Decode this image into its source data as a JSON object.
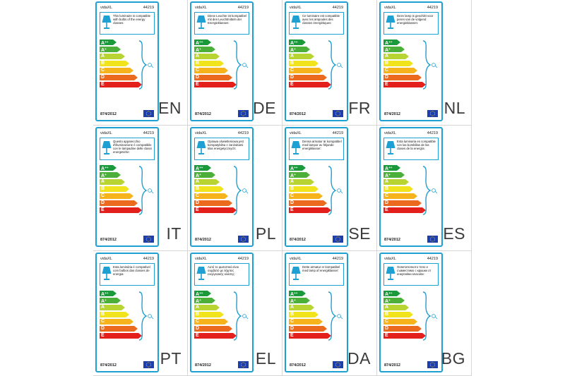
{
  "brand": "vidaXL",
  "model": "44219",
  "regulation": "874/2012",
  "energy_classes": [
    {
      "base": "A",
      "sup": "++",
      "color": "#1a9a3a",
      "width": 24
    },
    {
      "base": "A",
      "sup": "+",
      "color": "#4caf3a",
      "width": 30
    },
    {
      "base": "A",
      "sup": "",
      "color": "#b7d432",
      "width": 36
    },
    {
      "base": "B",
      "sup": "",
      "color": "#f1e41c",
      "width": 42
    },
    {
      "base": "C",
      "sup": "",
      "color": "#f6b31b",
      "width": 48
    },
    {
      "base": "D",
      "sup": "",
      "color": "#ec6a1e",
      "width": 54
    },
    {
      "base": "E",
      "sup": "",
      "color": "#e3201b",
      "width": 60
    }
  ],
  "colors": {
    "frame": "#1ea0d2",
    "eu_flag": "#1d3fae",
    "eu_stars": "#ffd200"
  },
  "icons": {
    "lamp": "lamp-icon",
    "bulb": "bulb-icon",
    "eu_flag": "eu-flag-icon"
  },
  "labels": [
    {
      "lang": "EN",
      "text": "This luminaire is compatible with bulbs of the energy classes:"
    },
    {
      "lang": "DE",
      "text": "Diese Leuchte ist kompatibel mit den Leuchtmitteln der Energieklassen:"
    },
    {
      "lang": "FR",
      "text": "Ce luminaire est compatible avec les ampoules des classes énergétiques:"
    },
    {
      "lang": "NL",
      "text": "Deze lamp is geschikt voor peren van de volgend energieklassen:"
    },
    {
      "lang": "IT",
      "text": "Questo apparecchio d'illuminazione è compatibile con le lampadine delle classi energetiche:"
    },
    {
      "lang": "PL",
      "text": "Oprawa oświetleniowa jest kompatybilna z żarówkami klas energetycznych:"
    },
    {
      "lang": "SE",
      "text": "Denna armatur är kompatibel med lampor av följande energiklasser:"
    },
    {
      "lang": "ES",
      "text": "Esta luminaria es compatible con las bombillas de las clases de la energía:"
    },
    {
      "lang": "PT",
      "text": "Esta luminária é compatível com bulbos das classes de energia:"
    },
    {
      "lang": "EL",
      "text": "Αυτό το φωτιστικό είναι συμβατό με λάμπες ενεργειακής κλάσης:"
    },
    {
      "lang": "DA",
      "text": "Dette armatur er kompatibel med lamp af energiklasser:"
    },
    {
      "lang": "BG",
      "text": "Осветителното тяло е съвместимо с крушки от енергийни класове:"
    }
  ]
}
